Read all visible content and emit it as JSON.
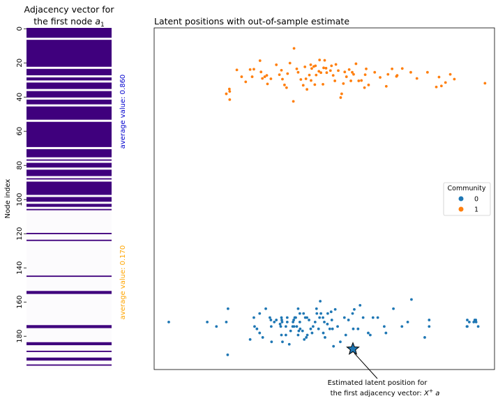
{
  "chart_data": [
    {
      "type": "heatmap",
      "title_line1": "Adjacency vector for",
      "title_line2_prefix": "the first node ",
      "title_line2_symbol": "a",
      "title_line2_subscript": "1",
      "ylabel": "Node index",
      "ylim": [
        0,
        200
      ],
      "yticks": [
        "0",
        "20",
        "40",
        "60",
        "80",
        "100",
        "120",
        "140",
        "160",
        "180"
      ],
      "connected_color": "#3f007d",
      "empty_color": "#fcfbfd",
      "connected_blocks": [
        [
          0,
          6
        ],
        [
          7,
          23
        ],
        [
          24,
          28
        ],
        [
          29,
          31
        ],
        [
          32,
          36
        ],
        [
          37,
          41
        ],
        [
          42,
          45
        ],
        [
          46,
          54
        ],
        [
          55,
          70
        ],
        [
          71,
          76
        ],
        [
          77,
          78
        ],
        [
          79,
          82
        ],
        [
          83,
          87
        ],
        [
          88,
          89
        ],
        [
          90,
          98
        ],
        [
          99,
          102
        ],
        [
          103,
          105
        ],
        [
          106,
          107
        ],
        [
          120,
          121
        ],
        [
          124,
          125
        ],
        [
          145,
          146
        ],
        [
          154,
          156
        ],
        [
          174,
          176
        ],
        [
          184,
          186
        ],
        [
          189,
          190
        ],
        [
          193,
          195
        ],
        [
          197,
          198
        ]
      ],
      "annotations": [
        {
          "text": "average value: 0.860",
          "color": "#0000cd"
        },
        {
          "text": "average value: 0.170",
          "color": "#ffa500"
        }
      ]
    },
    {
      "type": "scatter",
      "title": "Latent positions with out-of-sample estimate",
      "xlim": [
        0,
        1
      ],
      "ylim": [
        0,
        1
      ],
      "legend_title": "Community",
      "legend_placement": "center-right",
      "series": [
        {
          "name": "0",
          "color": "#1f77b4",
          "points": [
            [
              0.043,
              0.139
            ],
            [
              0.156,
              0.139
            ],
            [
              0.183,
              0.126
            ],
            [
              0.212,
              0.139
            ],
            [
              0.217,
              0.178
            ],
            [
              0.216,
              0.043
            ],
            [
              0.282,
              0.088
            ],
            [
              0.293,
              0.152
            ],
            [
              0.295,
              0.126
            ],
            [
              0.302,
              0.119
            ],
            [
              0.31,
              0.107
            ],
            [
              0.31,
              0.164
            ],
            [
              0.319,
              0.094
            ],
            [
              0.328,
              0.178
            ],
            [
              0.34,
              0.152
            ],
            [
              0.343,
              0.145
            ],
            [
              0.344,
              0.126
            ],
            [
              0.345,
              0.081
            ],
            [
              0.353,
              0.139
            ],
            [
              0.359,
              0.145
            ],
            [
              0.37,
              0.133
            ],
            [
              0.372,
              0.126
            ],
            [
              0.374,
              0.101
            ],
            [
              0.374,
              0.152
            ],
            [
              0.375,
              0.145
            ],
            [
              0.376,
              0.139
            ],
            [
              0.377,
              0.081
            ],
            [
              0.387,
              0.126
            ],
            [
              0.387,
              0.101
            ],
            [
              0.391,
              0.139
            ],
            [
              0.391,
              0.152
            ],
            [
              0.397,
              0.074
            ],
            [
              0.401,
              0.113
            ],
            [
              0.407,
              0.126
            ],
            [
              0.408,
              0.139
            ],
            [
              0.41,
              0.145
            ],
            [
              0.411,
              0.126
            ],
            [
              0.413,
              0.152
            ],
            [
              0.416,
              0.152
            ],
            [
              0.419,
              0.126
            ],
            [
              0.423,
              0.178
            ],
            [
              0.423,
              0.101
            ],
            [
              0.425,
              0.113
            ],
            [
              0.428,
              0.139
            ],
            [
              0.428,
              0.164
            ],
            [
              0.429,
              0.119
            ],
            [
              0.436,
              0.113
            ],
            [
              0.439,
              0.164
            ],
            [
              0.441,
              0.088
            ],
            [
              0.444,
              0.152
            ],
            [
              0.447,
              0.094
            ],
            [
              0.449,
              0.152
            ],
            [
              0.45,
              0.101
            ],
            [
              0.455,
              0.145
            ],
            [
              0.46,
              0.119
            ],
            [
              0.464,
              0.107
            ],
            [
              0.467,
              0.126
            ],
            [
              0.473,
              0.139
            ],
            [
              0.477,
              0.178
            ],
            [
              0.478,
              0.164
            ],
            [
              0.483,
              0.119
            ],
            [
              0.486,
              0.152
            ],
            [
              0.488,
              0.2
            ],
            [
              0.49,
              0.164
            ],
            [
              0.496,
              0.152
            ],
            [
              0.497,
              0.107
            ],
            [
              0.5,
              0.139
            ],
            [
              0.502,
              0.094
            ],
            [
              0.509,
              0.133
            ],
            [
              0.51,
              0.164
            ],
            [
              0.516,
              0.119
            ],
            [
              0.52,
              0.169
            ],
            [
              0.522,
              0.145
            ],
            [
              0.524,
              0.119
            ],
            [
              0.527,
              0.068
            ],
            [
              0.532,
              0.176
            ],
            [
              0.539,
              0.126
            ],
            [
              0.547,
              0.081
            ],
            [
              0.559,
              0.152
            ],
            [
              0.563,
              0.101
            ],
            [
              0.571,
              0.145
            ],
            [
              0.583,
              0.164
            ],
            [
              0.585,
              0.119
            ],
            [
              0.588,
              0.176
            ],
            [
              0.599,
              0.119
            ],
            [
              0.605,
              0.188
            ],
            [
              0.614,
              0.152
            ],
            [
              0.629,
              0.107
            ],
            [
              0.635,
              0.101
            ],
            [
              0.643,
              0.152
            ],
            [
              0.657,
              0.152
            ],
            [
              0.676,
              0.126
            ],
            [
              0.681,
              0.107
            ],
            [
              0.703,
              0.178
            ],
            [
              0.728,
              0.126
            ],
            [
              0.745,
              0.139
            ],
            [
              0.756,
              0.205
            ],
            [
              0.795,
              0.094
            ],
            [
              0.808,
              0.145
            ],
            [
              0.808,
              0.126
            ],
            [
              0.92,
              0.126
            ],
            [
              0.92,
              0.145
            ],
            [
              0.926,
              0.139
            ],
            [
              0.939,
              0.139
            ],
            [
              0.942,
              0.145
            ],
            [
              0.946,
              0.139
            ],
            [
              0.952,
              0.126
            ],
            [
              0.945,
              0.145
            ],
            [
              0.919,
              0.126
            ]
          ]
        },
        {
          "name": "1",
          "color": "#ff7f0e",
          "points": [
            [
              0.212,
              0.807
            ],
            [
              0.221,
              0.821
            ],
            [
              0.222,
              0.814
            ],
            [
              0.222,
              0.79
            ],
            [
              0.243,
              0.877
            ],
            [
              0.257,
              0.857
            ],
            [
              0.269,
              0.842
            ],
            [
              0.282,
              0.878
            ],
            [
              0.288,
              0.857
            ],
            [
              0.293,
              0.879
            ],
            [
              0.311,
              0.904
            ],
            [
              0.314,
              0.871
            ],
            [
              0.318,
              0.852
            ],
            [
              0.325,
              0.857
            ],
            [
              0.331,
              0.861
            ],
            [
              0.333,
              0.836
            ],
            [
              0.343,
              0.851
            ],
            [
              0.359,
              0.892
            ],
            [
              0.368,
              0.863
            ],
            [
              0.374,
              0.876
            ],
            [
              0.377,
              0.85
            ],
            [
              0.383,
              0.833
            ],
            [
              0.389,
              0.825
            ],
            [
              0.392,
              0.866
            ],
            [
              0.399,
              0.897
            ],
            [
              0.409,
              0.785
            ],
            [
              0.411,
              0.94
            ],
            [
              0.419,
              0.88
            ],
            [
              0.423,
              0.87
            ],
            [
              0.431,
              0.849
            ],
            [
              0.438,
              0.832
            ],
            [
              0.443,
              0.886
            ],
            [
              0.446,
              0.851
            ],
            [
              0.449,
              0.82
            ],
            [
              0.456,
              0.862
            ],
            [
              0.46,
              0.892
            ],
            [
              0.461,
              0.846
            ],
            [
              0.463,
              0.881
            ],
            [
              0.469,
              0.887
            ],
            [
              0.472,
              0.834
            ],
            [
              0.474,
              0.889
            ],
            [
              0.476,
              0.862
            ],
            [
              0.484,
              0.873
            ],
            [
              0.486,
              0.906
            ],
            [
              0.49,
              0.869
            ],
            [
              0.496,
              0.835
            ],
            [
              0.498,
              0.883
            ],
            [
              0.501,
              0.905
            ],
            [
              0.505,
              0.882
            ],
            [
              0.507,
              0.869
            ],
            [
              0.518,
              0.875
            ],
            [
              0.521,
              0.889
            ],
            [
              0.526,
              0.861
            ],
            [
              0.531,
              0.845
            ],
            [
              0.534,
              0.893
            ],
            [
              0.541,
              0.875
            ],
            [
              0.548,
              0.796
            ],
            [
              0.551,
              0.807
            ],
            [
              0.556,
              0.837
            ],
            [
              0.56,
              0.871
            ],
            [
              0.565,
              0.857
            ],
            [
              0.573,
              0.878
            ],
            [
              0.578,
              0.845
            ],
            [
              0.582,
              0.87
            ],
            [
              0.586,
              0.864
            ],
            [
              0.593,
              0.895
            ],
            [
              0.601,
              0.845
            ],
            [
              0.609,
              0.846
            ],
            [
              0.618,
              0.825
            ],
            [
              0.62,
              0.863
            ],
            [
              0.623,
              0.88
            ],
            [
              0.63,
              0.833
            ],
            [
              0.648,
              0.87
            ],
            [
              0.664,
              0.855
            ],
            [
              0.682,
              0.829
            ],
            [
              0.687,
              0.864
            ],
            [
              0.699,
              0.88
            ],
            [
              0.712,
              0.858
            ],
            [
              0.714,
              0.861
            ],
            [
              0.729,
              0.881
            ],
            [
              0.754,
              0.87
            ],
            [
              0.772,
              0.852
            ],
            [
              0.803,
              0.87
            ],
            [
              0.829,
              0.827
            ],
            [
              0.837,
              0.856
            ],
            [
              0.844,
              0.83
            ],
            [
              0.856,
              0.84
            ],
            [
              0.87,
              0.864
            ],
            [
              0.882,
              0.85
            ],
            [
              0.972,
              0.838
            ]
          ]
        }
      ],
      "estimate_point": {
        "x": 0.584,
        "y": 0.06,
        "color": "#1f77b4"
      },
      "estimate_label_line1": "Estimated latent position for",
      "estimate_label_line2_prefix": "the first adjacency vector: ",
      "estimate_label_line2_math": "X",
      "estimate_label_line2_sup": "+",
      "estimate_label_line2_suffix": " a"
    }
  ]
}
